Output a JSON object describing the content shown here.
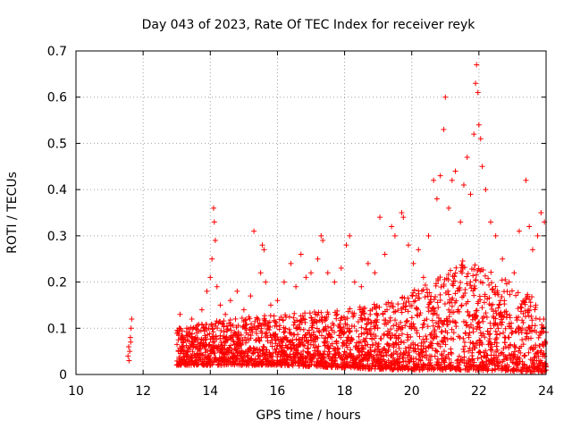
{
  "chart_data": {
    "type": "scatter",
    "title": "Day 043 of 2023, Rate Of TEC Index for receiver reyk",
    "xlabel": "GPS time / hours",
    "ylabel": "ROTI / TECUs",
    "xlim": [
      10,
      24
    ],
    "ylim": [
      0,
      0.7
    ],
    "xticks": [
      10,
      12,
      14,
      16,
      18,
      20,
      22,
      24
    ],
    "yticks": [
      0,
      0.1,
      0.2,
      0.3,
      0.4,
      0.5,
      0.6,
      0.7
    ],
    "grid": true,
    "marker": "+",
    "color": "#ff0000",
    "series": [
      {
        "points": [
          [
            11.55,
            0.04
          ],
          [
            11.57,
            0.06
          ],
          [
            11.6,
            0.05
          ],
          [
            11.62,
            0.08
          ],
          [
            11.64,
            0.1
          ],
          [
            11.66,
            0.12
          ],
          [
            11.58,
            0.03
          ],
          [
            11.63,
            0.07
          ],
          [
            13.05,
            0.05
          ],
          [
            13.1,
            0.13
          ],
          [
            13.2,
            0.07
          ],
          [
            13.3,
            0.1
          ],
          [
            13.45,
            0.12
          ],
          [
            13.6,
            0.09
          ],
          [
            13.75,
            0.14
          ],
          [
            13.9,
            0.18
          ],
          [
            14.0,
            0.21
          ],
          [
            14.05,
            0.25
          ],
          [
            14.1,
            0.36
          ],
          [
            14.12,
            0.33
          ],
          [
            14.15,
            0.29
          ],
          [
            14.2,
            0.19
          ],
          [
            14.3,
            0.15
          ],
          [
            14.45,
            0.13
          ],
          [
            14.6,
            0.16
          ],
          [
            14.8,
            0.18
          ],
          [
            15.0,
            0.14
          ],
          [
            15.2,
            0.17
          ],
          [
            15.3,
            0.31
          ],
          [
            15.5,
            0.22
          ],
          [
            15.55,
            0.28
          ],
          [
            15.6,
            0.27
          ],
          [
            15.65,
            0.2
          ],
          [
            15.8,
            0.15
          ],
          [
            16.0,
            0.16
          ],
          [
            16.2,
            0.2
          ],
          [
            16.4,
            0.24
          ],
          [
            16.55,
            0.19
          ],
          [
            16.7,
            0.26
          ],
          [
            16.85,
            0.21
          ],
          [
            17.0,
            0.22
          ],
          [
            17.2,
            0.25
          ],
          [
            17.3,
            0.3
          ],
          [
            17.35,
            0.29
          ],
          [
            17.5,
            0.22
          ],
          [
            17.7,
            0.2
          ],
          [
            17.9,
            0.23
          ],
          [
            18.05,
            0.28
          ],
          [
            18.15,
            0.3
          ],
          [
            18.3,
            0.2
          ],
          [
            18.5,
            0.19
          ],
          [
            18.7,
            0.24
          ],
          [
            18.9,
            0.22
          ],
          [
            19.05,
            0.34
          ],
          [
            19.2,
            0.26
          ],
          [
            19.4,
            0.32
          ],
          [
            19.5,
            0.3
          ],
          [
            19.7,
            0.35
          ],
          [
            19.75,
            0.34
          ],
          [
            19.9,
            0.28
          ],
          [
            20.05,
            0.24
          ],
          [
            20.2,
            0.27
          ],
          [
            20.35,
            0.21
          ],
          [
            20.5,
            0.3
          ],
          [
            20.65,
            0.42
          ],
          [
            20.75,
            0.38
          ],
          [
            20.85,
            0.43
          ],
          [
            20.95,
            0.53
          ],
          [
            21.0,
            0.6
          ],
          [
            21.1,
            0.36
          ],
          [
            21.2,
            0.42
          ],
          [
            21.3,
            0.44
          ],
          [
            21.45,
            0.33
          ],
          [
            21.55,
            0.41
          ],
          [
            21.65,
            0.47
          ],
          [
            21.75,
            0.39
          ],
          [
            21.85,
            0.52
          ],
          [
            21.9,
            0.63
          ],
          [
            21.93,
            0.67
          ],
          [
            21.97,
            0.61
          ],
          [
            22.0,
            0.54
          ],
          [
            22.05,
            0.51
          ],
          [
            22.1,
            0.45
          ],
          [
            22.2,
            0.4
          ],
          [
            22.35,
            0.33
          ],
          [
            22.5,
            0.3
          ],
          [
            22.7,
            0.25
          ],
          [
            22.9,
            0.2
          ],
          [
            23.05,
            0.22
          ],
          [
            23.2,
            0.31
          ],
          [
            23.4,
            0.42
          ],
          [
            23.5,
            0.32
          ],
          [
            23.6,
            0.27
          ],
          [
            23.75,
            0.3
          ],
          [
            23.85,
            0.35
          ],
          [
            23.95,
            0.33
          ],
          [
            13.5,
            0.06
          ],
          [
            15.7,
            0.08
          ],
          [
            16.9,
            0.09
          ],
          [
            18.6,
            0.07
          ],
          [
            19.6,
            0.1
          ],
          [
            21.7,
            0.08
          ],
          [
            22.8,
            0.06
          ],
          [
            23.9,
            0.04
          ]
        ],
        "band_min": [
          [
            13.0,
            0.02
          ],
          [
            16.0,
            0.02
          ],
          [
            19.5,
            0.01
          ],
          [
            21.5,
            0.01
          ],
          [
            24.0,
            0.005
          ]
        ],
        "band_max": [
          [
            13.0,
            0.1
          ],
          [
            14.5,
            0.12
          ],
          [
            16.0,
            0.13
          ],
          [
            18.0,
            0.14
          ],
          [
            19.5,
            0.16
          ],
          [
            20.5,
            0.2
          ],
          [
            21.5,
            0.25
          ],
          [
            22.5,
            0.22
          ],
          [
            23.5,
            0.18
          ],
          [
            24.0,
            0.12
          ]
        ]
      }
    ]
  }
}
